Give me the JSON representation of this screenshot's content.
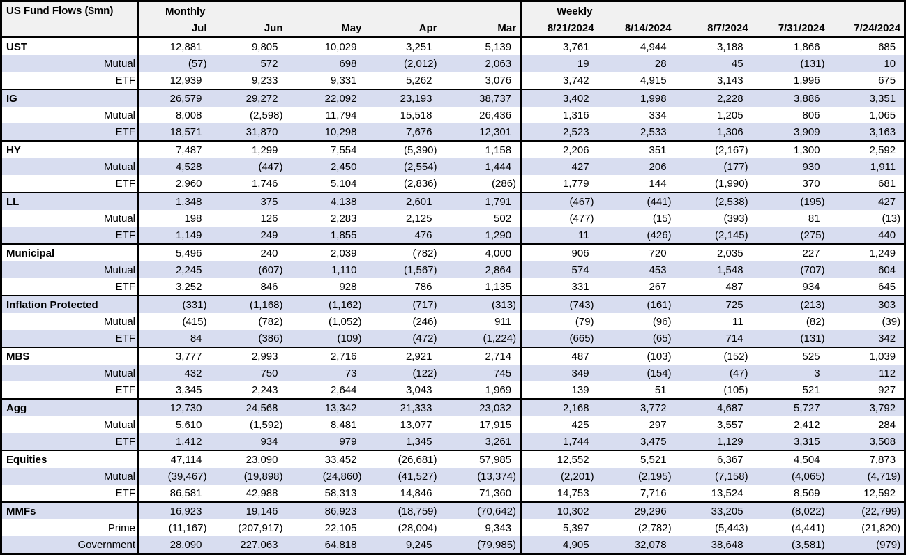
{
  "title": "US Fund Flows ($mn)",
  "sections": {
    "monthly": "Monthly",
    "weekly": "Weekly"
  },
  "columns": {
    "monthly": [
      "Jul",
      "Jun",
      "May",
      "Apr",
      "Mar"
    ],
    "weekly": [
      "8/21/2024",
      "8/14/2024",
      "8/7/2024",
      "7/31/2024",
      "7/24/2024"
    ]
  },
  "colors": {
    "stripe": "#d8ddf0",
    "header_bg": "#f1f1f1",
    "border": "#000000"
  },
  "groups": [
    {
      "rows": [
        {
          "label": "UST",
          "values": [
            "12,881",
            "9,805",
            "10,029",
            "3,251",
            "5,139",
            "3,761",
            "4,944",
            "3,188",
            "1,866",
            "685"
          ]
        },
        {
          "label": "Mutual",
          "values": [
            "(57)",
            "572",
            "698",
            "(2,012)",
            "2,063",
            "19",
            "28",
            "45",
            "(131)",
            "10"
          ]
        },
        {
          "label": "ETF",
          "values": [
            "12,939",
            "9,233",
            "9,331",
            "5,262",
            "3,076",
            "3,742",
            "4,915",
            "3,143",
            "1,996",
            "675"
          ]
        }
      ]
    },
    {
      "rows": [
        {
          "label": "IG",
          "values": [
            "26,579",
            "29,272",
            "22,092",
            "23,193",
            "38,737",
            "3,402",
            "1,998",
            "2,228",
            "3,886",
            "3,351"
          ]
        },
        {
          "label": "Mutual",
          "values": [
            "8,008",
            "(2,598)",
            "11,794",
            "15,518",
            "26,436",
            "1,316",
            "334",
            "1,205",
            "806",
            "1,065"
          ]
        },
        {
          "label": "ETF",
          "values": [
            "18,571",
            "31,870",
            "10,298",
            "7,676",
            "12,301",
            "2,523",
            "2,533",
            "1,306",
            "3,909",
            "3,163"
          ]
        }
      ]
    },
    {
      "rows": [
        {
          "label": "HY",
          "values": [
            "7,487",
            "1,299",
            "7,554",
            "(5,390)",
            "1,158",
            "2,206",
            "351",
            "(2,167)",
            "1,300",
            "2,592"
          ]
        },
        {
          "label": "Mutual",
          "values": [
            "4,528",
            "(447)",
            "2,450",
            "(2,554)",
            "1,444",
            "427",
            "206",
            "(177)",
            "930",
            "1,911"
          ]
        },
        {
          "label": "ETF",
          "values": [
            "2,960",
            "1,746",
            "5,104",
            "(2,836)",
            "(286)",
            "1,779",
            "144",
            "(1,990)",
            "370",
            "681"
          ]
        }
      ]
    },
    {
      "rows": [
        {
          "label": "LL",
          "values": [
            "1,348",
            "375",
            "4,138",
            "2,601",
            "1,791",
            "(467)",
            "(441)",
            "(2,538)",
            "(195)",
            "427"
          ]
        },
        {
          "label": "Mutual",
          "values": [
            "198",
            "126",
            "2,283",
            "2,125",
            "502",
            "(477)",
            "(15)",
            "(393)",
            "81",
            "(13)"
          ]
        },
        {
          "label": "ETF",
          "values": [
            "1,149",
            "249",
            "1,855",
            "476",
            "1,290",
            "11",
            "(426)",
            "(2,145)",
            "(275)",
            "440"
          ]
        }
      ]
    },
    {
      "rows": [
        {
          "label": "Municipal",
          "values": [
            "5,496",
            "240",
            "2,039",
            "(782)",
            "4,000",
            "906",
            "720",
            "2,035",
            "227",
            "1,249"
          ]
        },
        {
          "label": "Mutual",
          "values": [
            "2,245",
            "(607)",
            "1,110",
            "(1,567)",
            "2,864",
            "574",
            "453",
            "1,548",
            "(707)",
            "604"
          ]
        },
        {
          "label": "ETF",
          "values": [
            "3,252",
            "846",
            "928",
            "786",
            "1,135",
            "331",
            "267",
            "487",
            "934",
            "645"
          ]
        }
      ]
    },
    {
      "rows": [
        {
          "label": "Inflation Protected",
          "values": [
            "(331)",
            "(1,168)",
            "(1,162)",
            "(717)",
            "(313)",
            "(743)",
            "(161)",
            "725",
            "(213)",
            "303"
          ]
        },
        {
          "label": "Mutual",
          "values": [
            "(415)",
            "(782)",
            "(1,052)",
            "(246)",
            "911",
            "(79)",
            "(96)",
            "11",
            "(82)",
            "(39)"
          ]
        },
        {
          "label": "ETF",
          "values": [
            "84",
            "(386)",
            "(109)",
            "(472)",
            "(1,224)",
            "(665)",
            "(65)",
            "714",
            "(131)",
            "342"
          ]
        }
      ]
    },
    {
      "rows": [
        {
          "label": "MBS",
          "values": [
            "3,777",
            "2,993",
            "2,716",
            "2,921",
            "2,714",
            "487",
            "(103)",
            "(152)",
            "525",
            "1,039"
          ]
        },
        {
          "label": "Mutual",
          "values": [
            "432",
            "750",
            "73",
            "(122)",
            "745",
            "349",
            "(154)",
            "(47)",
            "3",
            "112"
          ]
        },
        {
          "label": "ETF",
          "values": [
            "3,345",
            "2,243",
            "2,644",
            "3,043",
            "1,969",
            "139",
            "51",
            "(105)",
            "521",
            "927"
          ]
        }
      ]
    },
    {
      "rows": [
        {
          "label": "Agg",
          "values": [
            "12,730",
            "24,568",
            "13,342",
            "21,333",
            "23,032",
            "2,168",
            "3,772",
            "4,687",
            "5,727",
            "3,792"
          ]
        },
        {
          "label": "Mutual",
          "values": [
            "5,610",
            "(1,592)",
            "8,481",
            "13,077",
            "17,915",
            "425",
            "297",
            "3,557",
            "2,412",
            "284"
          ]
        },
        {
          "label": "ETF",
          "values": [
            "1,412",
            "934",
            "979",
            "1,345",
            "3,261",
            "1,744",
            "3,475",
            "1,129",
            "3,315",
            "3,508"
          ]
        }
      ]
    },
    {
      "rows": [
        {
          "label": "Equities",
          "values": [
            "47,114",
            "23,090",
            "33,452",
            "(26,681)",
            "57,985",
            "12,552",
            "5,521",
            "6,367",
            "4,504",
            "7,873"
          ]
        },
        {
          "label": "Mutual",
          "values": [
            "(39,467)",
            "(19,898)",
            "(24,860)",
            "(41,527)",
            "(13,374)",
            "(2,201)",
            "(2,195)",
            "(7,158)",
            "(4,065)",
            "(4,719)"
          ]
        },
        {
          "label": "ETF",
          "values": [
            "86,581",
            "42,988",
            "58,313",
            "14,846",
            "71,360",
            "14,753",
            "7,716",
            "13,524",
            "8,569",
            "12,592"
          ]
        }
      ]
    },
    {
      "rows": [
        {
          "label": "MMFs",
          "values": [
            "16,923",
            "19,146",
            "86,923",
            "(18,759)",
            "(70,642)",
            "10,302",
            "29,296",
            "33,205",
            "(8,022)",
            "(22,799)"
          ]
        },
        {
          "label": "Prime",
          "values": [
            "(11,167)",
            "(207,917)",
            "22,105",
            "(28,004)",
            "9,343",
            "5,397",
            "(2,782)",
            "(5,443)",
            "(4,441)",
            "(21,820)"
          ]
        },
        {
          "label": "Government",
          "values": [
            "28,090",
            "227,063",
            "64,818",
            "9,245",
            "(79,985)",
            "4,905",
            "32,078",
            "38,648",
            "(3,581)",
            "(979)"
          ]
        }
      ]
    }
  ]
}
